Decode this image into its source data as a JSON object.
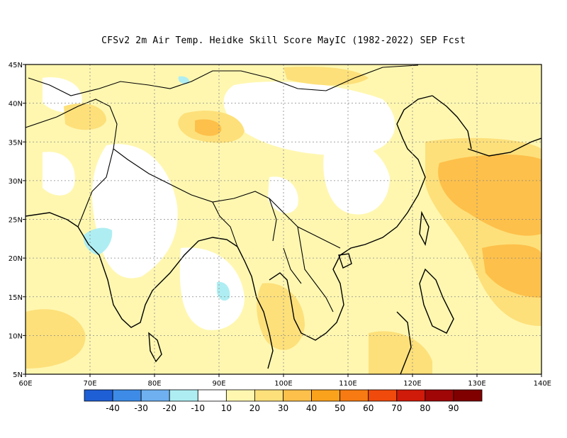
{
  "title": "CFSv2  2m Air Temp. Heidke Skill Score MayIC (1982-2022) SEP Fcst",
  "map": {
    "lon_range": [
      60,
      140
    ],
    "lat_range": [
      5,
      45
    ],
    "x_ticks": [
      "60E",
      "70E",
      "80E",
      "90E",
      "100E",
      "110E",
      "120E",
      "130E",
      "140E"
    ],
    "y_ticks": [
      "5N",
      "10N",
      "15N",
      "20N",
      "25N",
      "30N",
      "35N",
      "40N",
      "45N"
    ],
    "gridlines": "dotted",
    "field_levels": [
      -40,
      -30,
      -20,
      -10,
      10,
      20,
      30,
      40,
      50,
      60,
      70,
      80,
      90
    ]
  },
  "colorbar": {
    "colors": [
      "#1f5fd6",
      "#3d8be6",
      "#6fb0f0",
      "#aeeef2",
      "#ffffff",
      "#fff7b0",
      "#fde07a",
      "#fdc04a",
      "#fba21c",
      "#f77a12",
      "#f04a0c",
      "#d01a0a",
      "#a00606",
      "#800000"
    ],
    "labels": [
      "-40",
      "-30",
      "-20",
      "-10",
      "10",
      "20",
      "30",
      "40",
      "50",
      "60",
      "70",
      "80",
      "90"
    ]
  }
}
